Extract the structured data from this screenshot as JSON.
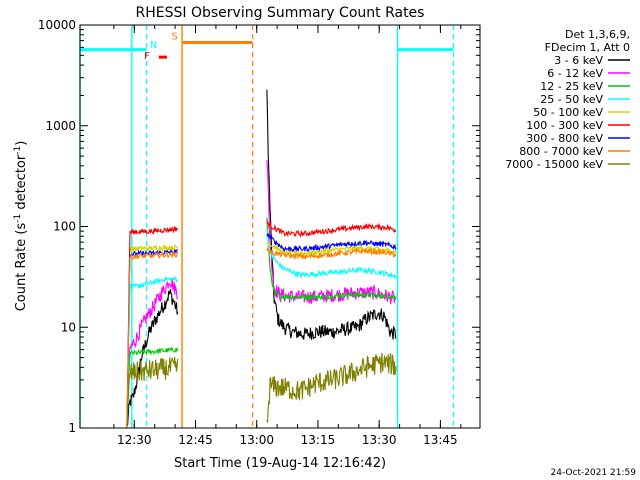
{
  "chart_data": {
    "type": "line",
    "title": "RHESSI Observing Summary Count Rates",
    "xlabel": "Start Time (19-Aug-14 12:16:42)",
    "ylabel_main": "Count Rate (s",
    "ylabel_sup1": "-1",
    "ylabel_mid": " detector",
    "ylabel_sup2": "-1",
    "ylabel_end": ")",
    "yscale": "log",
    "ylim": [
      1,
      10000
    ],
    "xlim_min": [
      0,
      98
    ],
    "x_unit": "minutes after 12:16:42",
    "x_ticks": [
      {
        "label": "12:30",
        "min": 13.3
      },
      {
        "label": "12:45",
        "min": 28.3
      },
      {
        "label": "13:00",
        "min": 43.3
      },
      {
        "label": "13:15",
        "min": 58.3
      },
      {
        "label": "13:30",
        "min": 73.3
      },
      {
        "label": "13:45",
        "min": 88.3
      }
    ],
    "y_ticks": [
      {
        "label": "1",
        "value": 1
      },
      {
        "label": "10",
        "value": 10
      },
      {
        "label": "100",
        "value": 100
      },
      {
        "label": "1000",
        "value": 1000
      },
      {
        "label": "10000",
        "value": 10000
      }
    ],
    "legend_header": [
      "Det 1,3,6,9,",
      "FDecim 1, Att 0"
    ],
    "series": [
      {
        "name": "3 - 6 keV",
        "color": "#000000",
        "seg1": [
          [
            11.5,
            1
          ],
          [
            12.2,
            1.8
          ],
          [
            13,
            2
          ],
          [
            14,
            3
          ],
          [
            15,
            5
          ],
          [
            17,
            9
          ],
          [
            19,
            13
          ],
          [
            21,
            18
          ],
          [
            22,
            22
          ],
          [
            23,
            18
          ],
          [
            24,
            14
          ]
        ],
        "seg2": [
          [
            45.8,
            2000
          ],
          [
            46.2,
            400
          ],
          [
            46.8,
            80
          ],
          [
            47.5,
            20
          ],
          [
            48.5,
            12
          ],
          [
            50,
            10
          ],
          [
            52,
            9
          ],
          [
            55,
            8.5
          ],
          [
            58,
            9
          ],
          [
            62,
            9
          ],
          [
            65,
            9.5
          ],
          [
            68,
            10
          ],
          [
            70,
            12
          ],
          [
            73,
            14
          ],
          [
            74.5,
            13
          ],
          [
            76,
            9
          ],
          [
            77.5,
            8.5
          ]
        ]
      },
      {
        "name": "6 - 12 keV",
        "color": "#ff00ff",
        "seg1": [
          [
            11.5,
            1
          ],
          [
            12.2,
            6
          ],
          [
            14,
            8
          ],
          [
            16,
            12
          ],
          [
            18,
            16
          ],
          [
            20,
            22
          ],
          [
            21,
            25
          ],
          [
            22,
            30
          ],
          [
            23,
            25
          ],
          [
            24,
            22
          ]
        ],
        "seg2": [
          [
            45.8,
            500
          ],
          [
            46.5,
            80
          ],
          [
            47.5,
            25
          ],
          [
            49,
            21
          ],
          [
            53,
            20
          ],
          [
            58,
            20
          ],
          [
            63,
            21
          ],
          [
            68,
            22
          ],
          [
            72,
            22
          ],
          [
            74,
            21
          ],
          [
            76,
            20
          ],
          [
            77.5,
            19
          ]
        ]
      },
      {
        "name": "12 - 25 keV",
        "color": "#00cc00",
        "seg1": [
          [
            11.5,
            1
          ],
          [
            12.2,
            5.5
          ],
          [
            24,
            6
          ]
        ],
        "seg2": [
          [
            45.8,
            120
          ],
          [
            46.5,
            40
          ],
          [
            47.5,
            22
          ],
          [
            50,
            20
          ],
          [
            55,
            20
          ],
          [
            60,
            20
          ],
          [
            65,
            21
          ],
          [
            70,
            21
          ],
          [
            77.5,
            20
          ]
        ]
      },
      {
        "name": "25 - 50 keV",
        "color": "#00ffff",
        "seg1": [
          [
            11.5,
            1
          ],
          [
            12.2,
            25
          ],
          [
            15,
            26
          ],
          [
            18,
            28
          ],
          [
            21,
            30
          ],
          [
            24,
            30
          ]
        ],
        "seg2": [
          [
            45.8,
            90
          ],
          [
            46.5,
            55
          ],
          [
            48,
            45
          ],
          [
            50,
            38
          ],
          [
            54,
            33
          ],
          [
            58,
            34
          ],
          [
            63,
            35
          ],
          [
            68,
            37
          ],
          [
            72,
            36
          ],
          [
            75,
            34
          ],
          [
            77.5,
            32
          ]
        ]
      },
      {
        "name": "50 - 100 keV",
        "color": "#d4d400",
        "seg1": [
          [
            11.5,
            1
          ],
          [
            12.2,
            60
          ],
          [
            24,
            62
          ]
        ],
        "seg2": [
          [
            45.8,
            70
          ],
          [
            47,
            65
          ],
          [
            50,
            55
          ],
          [
            55,
            54
          ],
          [
            60,
            57
          ],
          [
            65,
            60
          ],
          [
            70,
            61
          ],
          [
            75,
            58
          ],
          [
            77.5,
            56
          ]
        ]
      },
      {
        "name": "100 - 300 keV",
        "color": "#ff0000",
        "seg1": [
          [
            11.5,
            1
          ],
          [
            12.2,
            88
          ],
          [
            18,
            90
          ],
          [
            24,
            95
          ]
        ],
        "seg2": [
          [
            45.8,
            110
          ],
          [
            47,
            100
          ],
          [
            50,
            85
          ],
          [
            55,
            85
          ],
          [
            60,
            90
          ],
          [
            65,
            95
          ],
          [
            70,
            100
          ],
          [
            75,
            98
          ],
          [
            77.5,
            92
          ]
        ]
      },
      {
        "name": "300 - 800 keV",
        "color": "#0000ff",
        "seg1": [
          [
            11.5,
            1
          ],
          [
            12.2,
            53
          ],
          [
            24,
            56
          ]
        ],
        "seg2": [
          [
            45.8,
            85
          ],
          [
            47,
            75
          ],
          [
            50,
            60
          ],
          [
            55,
            60
          ],
          [
            60,
            63
          ],
          [
            65,
            67
          ],
          [
            70,
            69
          ],
          [
            75,
            66
          ],
          [
            77.5,
            62
          ]
        ]
      },
      {
        "name": "800 - 7000 keV",
        "color": "#ff8000",
        "seg1": [
          [
            11.5,
            1
          ],
          [
            12.2,
            50
          ],
          [
            24,
            53
          ]
        ],
        "seg2": [
          [
            45.8,
            60
          ],
          [
            47,
            55
          ],
          [
            50,
            52
          ],
          [
            55,
            50
          ],
          [
            60,
            52
          ],
          [
            65,
            55
          ],
          [
            70,
            57
          ],
          [
            75,
            55
          ],
          [
            77.5,
            52
          ]
        ]
      },
      {
        "name": "7000 - 15000 keV",
        "color": "#808000",
        "seg1": [
          [
            11.5,
            1
          ],
          [
            12.2,
            3.5
          ],
          [
            24,
            4
          ]
        ],
        "seg2": [
          [
            45.8,
            1
          ],
          [
            46.5,
            2.6
          ],
          [
            50,
            2.5
          ],
          [
            54,
            2.3
          ],
          [
            58,
            2.8
          ],
          [
            62,
            3
          ],
          [
            66,
            3.4
          ],
          [
            70,
            4
          ],
          [
            74,
            4.5
          ],
          [
            77,
            4.2
          ],
          [
            77.5,
            3.6
          ]
        ]
      }
    ],
    "solid_verticals": [
      {
        "min": 0,
        "color": "#00ffff"
      },
      {
        "min": 12.7,
        "color": "#00ffff"
      },
      {
        "min": 25,
        "color": "#ff8000"
      },
      {
        "min": 77.8,
        "color": "#00ffff"
      }
    ],
    "dashed_verticals": [
      {
        "min": 16.3,
        "color": "#00ffff"
      },
      {
        "min": 42.3,
        "color": "#ff8000"
      },
      {
        "min": 91.5,
        "color": "#00ffff"
      }
    ],
    "intervals": [
      {
        "from": 0,
        "to": 16.3,
        "value": 5700,
        "color": "#00ffff"
      },
      {
        "from": 25,
        "to": 42.3,
        "value": 6700,
        "color": "#ff8000"
      },
      {
        "from": 77.8,
        "to": 91.5,
        "value": 5700,
        "color": "#00ffff"
      },
      {
        "from": 19.3,
        "to": 21.3,
        "value": 4800,
        "color": "#ff0000"
      }
    ],
    "flags": [
      {
        "text": "S",
        "min": 23.2,
        "value": 7200,
        "color": "#ff8000"
      },
      {
        "text": "N",
        "min": 18,
        "value": 5900,
        "color": "#00ffff"
      },
      {
        "text": "F",
        "min": 16.4,
        "value": 4600,
        "color": "#ff0000"
      }
    ],
    "footer": "24-Oct-2021 21:59"
  }
}
